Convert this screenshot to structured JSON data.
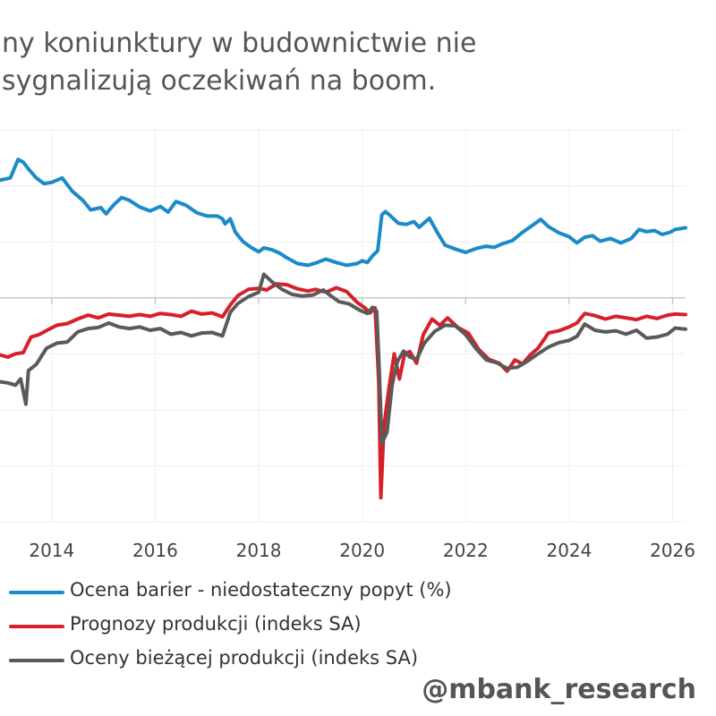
{
  "title": {
    "line1": "ny koniunktury w budownictwie nie",
    "line2": "sygnalizują oczekiwań na boom."
  },
  "watermark": "@mbank_research",
  "colors": {
    "blue": "#1a8ac8",
    "red": "#d6202a",
    "gray": "#5a5a5a",
    "grid": "#eeeeee",
    "zero_line": "#c8c8c8"
  },
  "chart_data": {
    "type": "line",
    "title": "ny koniunktury w budownictwie nie sygnalizują oczekiwań na boom.",
    "xlabel": "",
    "ylabel": "",
    "xlim": [
      2013.0,
      2026.25
    ],
    "ylim": [
      -40,
      30
    ],
    "grid": true,
    "legend_position": "bottom",
    "x_ticks": [
      "2014",
      "2016",
      "2018",
      "2020",
      "2022",
      "2024",
      "2026"
    ],
    "legend": [
      "Ocena barier - niedostateczny popyt (%)",
      "Prognozy produkcji (indeks SA)",
      "Oceny bieżącej produkcji (indeks SA)"
    ],
    "series": [
      {
        "name": "Ocena barier - niedostateczny popyt (%)",
        "color_key": "blue",
        "points": [
          [
            2013.0,
            21.0
          ],
          [
            2013.2,
            21.4
          ],
          [
            2013.35,
            24.7
          ],
          [
            2013.45,
            24.2
          ],
          [
            2013.55,
            23.0
          ],
          [
            2013.7,
            21.4
          ],
          [
            2013.85,
            20.4
          ],
          [
            2014.0,
            20.6
          ],
          [
            2014.2,
            21.4
          ],
          [
            2014.4,
            19.0
          ],
          [
            2014.6,
            17.4
          ],
          [
            2014.75,
            15.7
          ],
          [
            2014.95,
            16.1
          ],
          [
            2015.05,
            15.0
          ],
          [
            2015.2,
            16.6
          ],
          [
            2015.35,
            17.9
          ],
          [
            2015.5,
            17.4
          ],
          [
            2015.7,
            16.2
          ],
          [
            2015.9,
            15.5
          ],
          [
            2016.1,
            16.3
          ],
          [
            2016.25,
            15.3
          ],
          [
            2016.4,
            17.2
          ],
          [
            2016.6,
            16.5
          ],
          [
            2016.8,
            15.2
          ],
          [
            2017.0,
            14.6
          ],
          [
            2017.2,
            14.6
          ],
          [
            2017.3,
            14.1
          ],
          [
            2017.35,
            13.2
          ],
          [
            2017.45,
            14.1
          ],
          [
            2017.55,
            11.7
          ],
          [
            2017.7,
            10.0
          ],
          [
            2017.85,
            9.0
          ],
          [
            2018.0,
            8.2
          ],
          [
            2018.1,
            8.9
          ],
          [
            2018.25,
            8.6
          ],
          [
            2018.4,
            8.0
          ],
          [
            2018.55,
            7.1
          ],
          [
            2018.75,
            6.1
          ],
          [
            2018.95,
            5.8
          ],
          [
            2019.1,
            6.2
          ],
          [
            2019.3,
            6.9
          ],
          [
            2019.5,
            6.3
          ],
          [
            2019.7,
            5.8
          ],
          [
            2019.9,
            6.1
          ],
          [
            2020.0,
            6.6
          ],
          [
            2020.1,
            6.3
          ],
          [
            2020.2,
            7.5
          ],
          [
            2020.3,
            8.4
          ],
          [
            2020.38,
            14.8
          ],
          [
            2020.45,
            15.4
          ],
          [
            2020.55,
            14.6
          ],
          [
            2020.7,
            13.3
          ],
          [
            2020.85,
            13.1
          ],
          [
            2021.0,
            13.6
          ],
          [
            2021.1,
            12.6
          ],
          [
            2021.3,
            14.2
          ],
          [
            2021.45,
            11.7
          ],
          [
            2021.6,
            9.4
          ],
          [
            2021.8,
            8.7
          ],
          [
            2022.0,
            8.1
          ],
          [
            2022.2,
            8.8
          ],
          [
            2022.4,
            9.2
          ],
          [
            2022.55,
            9.0
          ],
          [
            2022.7,
            9.6
          ],
          [
            2022.9,
            10.2
          ],
          [
            2023.1,
            11.7
          ],
          [
            2023.3,
            13.0
          ],
          [
            2023.45,
            14.0
          ],
          [
            2023.6,
            12.7
          ],
          [
            2023.8,
            11.6
          ],
          [
            2024.0,
            10.9
          ],
          [
            2024.15,
            9.8
          ],
          [
            2024.3,
            10.8
          ],
          [
            2024.45,
            11.1
          ],
          [
            2024.6,
            10.1
          ],
          [
            2024.8,
            10.6
          ],
          [
            2025.0,
            9.8
          ],
          [
            2025.2,
            10.6
          ],
          [
            2025.35,
            12.2
          ],
          [
            2025.5,
            11.8
          ],
          [
            2025.65,
            12.0
          ],
          [
            2025.8,
            11.3
          ],
          [
            2025.95,
            11.7
          ],
          [
            2026.05,
            12.2
          ],
          [
            2026.25,
            12.5
          ]
        ]
      },
      {
        "name": "Prognozy produkcji (indeks SA)",
        "color_key": "red",
        "points": [
          [
            2013.0,
            -10.2
          ],
          [
            2013.15,
            -10.6
          ],
          [
            2013.3,
            -10.0
          ],
          [
            2013.45,
            -9.8
          ],
          [
            2013.6,
            -7.0
          ],
          [
            2013.75,
            -6.6
          ],
          [
            2013.95,
            -5.6
          ],
          [
            2014.1,
            -4.9
          ],
          [
            2014.3,
            -4.6
          ],
          [
            2014.5,
            -3.8
          ],
          [
            2014.7,
            -3.1
          ],
          [
            2014.9,
            -3.6
          ],
          [
            2015.1,
            -2.9
          ],
          [
            2015.3,
            -3.1
          ],
          [
            2015.5,
            -3.3
          ],
          [
            2015.7,
            -3.0
          ],
          [
            2015.9,
            -3.3
          ],
          [
            2016.1,
            -2.8
          ],
          [
            2016.3,
            -3.0
          ],
          [
            2016.5,
            -3.3
          ],
          [
            2016.7,
            -2.4
          ],
          [
            2016.9,
            -2.9
          ],
          [
            2017.1,
            -2.7
          ],
          [
            2017.3,
            -3.4
          ],
          [
            2017.45,
            -1.3
          ],
          [
            2017.6,
            0.4
          ],
          [
            2017.8,
            1.5
          ],
          [
            2018.0,
            1.7
          ],
          [
            2018.15,
            1.4
          ],
          [
            2018.35,
            2.5
          ],
          [
            2018.55,
            2.3
          ],
          [
            2018.75,
            1.6
          ],
          [
            2018.95,
            1.2
          ],
          [
            2019.1,
            1.5
          ],
          [
            2019.3,
            1.0
          ],
          [
            2019.5,
            1.8
          ],
          [
            2019.7,
            1.1
          ],
          [
            2019.9,
            -0.8
          ],
          [
            2020.05,
            -1.8
          ],
          [
            2020.15,
            -2.7
          ],
          [
            2020.25,
            -1.8
          ],
          [
            2020.32,
            -15.0
          ],
          [
            2020.36,
            -35.7
          ],
          [
            2020.42,
            -23.0
          ],
          [
            2020.52,
            -16.0
          ],
          [
            2020.62,
            -10.0
          ],
          [
            2020.72,
            -14.5
          ],
          [
            2020.82,
            -10.0
          ],
          [
            2020.92,
            -9.6
          ],
          [
            2021.05,
            -11.7
          ],
          [
            2021.18,
            -6.6
          ],
          [
            2021.35,
            -3.8
          ],
          [
            2021.5,
            -4.9
          ],
          [
            2021.65,
            -3.6
          ],
          [
            2021.85,
            -5.3
          ],
          [
            2022.05,
            -6.3
          ],
          [
            2022.25,
            -9.2
          ],
          [
            2022.45,
            -11.0
          ],
          [
            2022.65,
            -11.7
          ],
          [
            2022.8,
            -13.1
          ],
          [
            2022.95,
            -11.1
          ],
          [
            2023.1,
            -11.8
          ],
          [
            2023.25,
            -10.2
          ],
          [
            2023.4,
            -9.0
          ],
          [
            2023.6,
            -6.3
          ],
          [
            2023.8,
            -5.9
          ],
          [
            2024.0,
            -5.2
          ],
          [
            2024.15,
            -4.5
          ],
          [
            2024.3,
            -2.8
          ],
          [
            2024.5,
            -3.2
          ],
          [
            2024.7,
            -3.8
          ],
          [
            2024.9,
            -3.3
          ],
          [
            2025.1,
            -3.6
          ],
          [
            2025.3,
            -3.9
          ],
          [
            2025.5,
            -3.3
          ],
          [
            2025.7,
            -3.7
          ],
          [
            2025.9,
            -3.1
          ],
          [
            2026.05,
            -2.9
          ],
          [
            2026.25,
            -3.0
          ]
        ]
      },
      {
        "name": "Oceny bieżącej produkcji (indeks SA)",
        "color_key": "gray",
        "points": [
          [
            2013.0,
            -15.0
          ],
          [
            2013.15,
            -15.2
          ],
          [
            2013.3,
            -15.6
          ],
          [
            2013.4,
            -14.5
          ],
          [
            2013.5,
            -19.0
          ],
          [
            2013.55,
            -13.0
          ],
          [
            2013.7,
            -11.9
          ],
          [
            2013.9,
            -9.0
          ],
          [
            2014.1,
            -8.1
          ],
          [
            2014.3,
            -7.9
          ],
          [
            2014.5,
            -6.1
          ],
          [
            2014.7,
            -5.5
          ],
          [
            2014.9,
            -5.3
          ],
          [
            2015.1,
            -4.5
          ],
          [
            2015.3,
            -5.2
          ],
          [
            2015.5,
            -5.5
          ],
          [
            2015.7,
            -5.2
          ],
          [
            2015.9,
            -5.8
          ],
          [
            2016.1,
            -5.5
          ],
          [
            2016.3,
            -6.5
          ],
          [
            2016.5,
            -6.2
          ],
          [
            2016.7,
            -6.8
          ],
          [
            2016.9,
            -6.3
          ],
          [
            2017.1,
            -6.2
          ],
          [
            2017.3,
            -6.8
          ],
          [
            2017.45,
            -2.6
          ],
          [
            2017.6,
            -1.0
          ],
          [
            2017.8,
            0.2
          ],
          [
            2018.0,
            1.0
          ],
          [
            2018.1,
            4.2
          ],
          [
            2018.25,
            2.9
          ],
          [
            2018.45,
            1.5
          ],
          [
            2018.65,
            0.6
          ],
          [
            2018.85,
            0.3
          ],
          [
            2019.05,
            0.5
          ],
          [
            2019.25,
            1.4
          ],
          [
            2019.4,
            0.3
          ],
          [
            2019.55,
            -0.7
          ],
          [
            2019.75,
            -1.1
          ],
          [
            2019.95,
            -2.2
          ],
          [
            2020.1,
            -2.8
          ],
          [
            2020.2,
            -1.7
          ],
          [
            2020.28,
            -2.4
          ],
          [
            2020.33,
            -13.0
          ],
          [
            2020.38,
            -26.0
          ],
          [
            2020.48,
            -24.0
          ],
          [
            2020.58,
            -15.5
          ],
          [
            2020.68,
            -11.4
          ],
          [
            2020.8,
            -9.5
          ],
          [
            2020.92,
            -10.6
          ],
          [
            2021.05,
            -11.0
          ],
          [
            2021.2,
            -8.1
          ],
          [
            2021.4,
            -6.0
          ],
          [
            2021.6,
            -4.9
          ],
          [
            2021.8,
            -5.0
          ],
          [
            2022.0,
            -6.6
          ],
          [
            2022.2,
            -9.1
          ],
          [
            2022.4,
            -11.1
          ],
          [
            2022.6,
            -11.6
          ],
          [
            2022.8,
            -12.6
          ],
          [
            2023.0,
            -12.4
          ],
          [
            2023.2,
            -11.3
          ],
          [
            2023.4,
            -10.0
          ],
          [
            2023.6,
            -8.8
          ],
          [
            2023.8,
            -8.0
          ],
          [
            2024.0,
            -7.6
          ],
          [
            2024.15,
            -6.9
          ],
          [
            2024.3,
            -4.7
          ],
          [
            2024.5,
            -5.8
          ],
          [
            2024.7,
            -6.1
          ],
          [
            2024.9,
            -5.9
          ],
          [
            2025.1,
            -6.5
          ],
          [
            2025.3,
            -5.8
          ],
          [
            2025.5,
            -7.2
          ],
          [
            2025.7,
            -7.0
          ],
          [
            2025.9,
            -6.5
          ],
          [
            2026.05,
            -5.4
          ],
          [
            2026.25,
            -5.6
          ]
        ]
      }
    ]
  }
}
